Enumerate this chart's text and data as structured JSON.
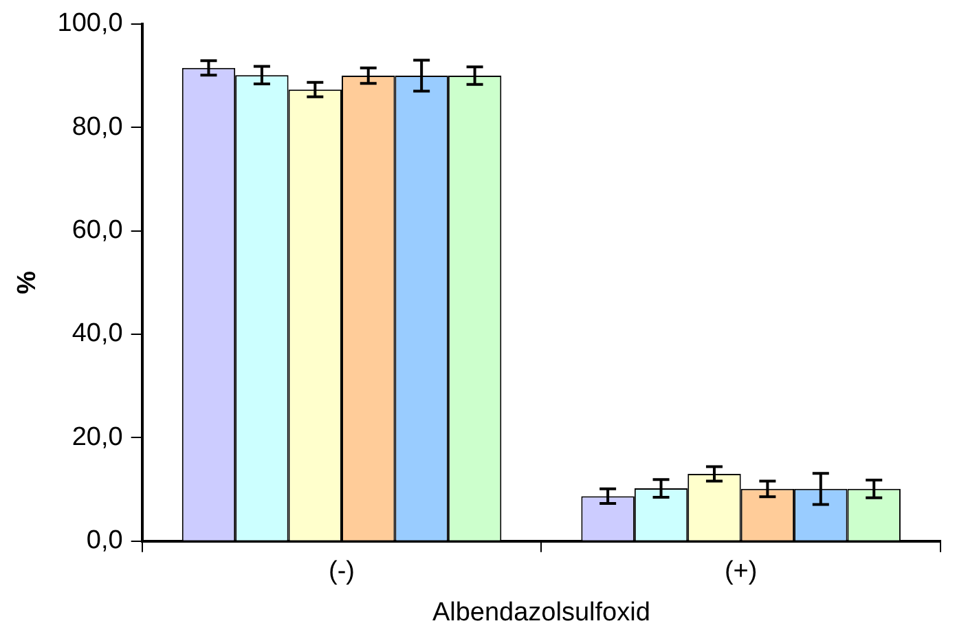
{
  "chart_data": {
    "type": "bar",
    "xlabel": "Albendazolsulfoxid",
    "ylabel": "%",
    "categories": [
      "(-)",
      "(+)"
    ],
    "series": [
      {
        "color": "#ccccff",
        "values": [
          91.5,
          8.7
        ],
        "errors": [
          1.4,
          1.4
        ]
      },
      {
        "color": "#ccffff",
        "values": [
          90.1,
          10.2
        ],
        "errors": [
          1.7,
          1.7
        ]
      },
      {
        "color": "#ffffcc",
        "values": [
          87.3,
          13.0
        ],
        "errors": [
          1.4,
          1.4
        ]
      },
      {
        "color": "#ffcc99",
        "values": [
          90.0,
          10.1
        ],
        "errors": [
          1.5,
          1.5
        ]
      },
      {
        "color": "#99ccff",
        "values": [
          90.0,
          10.1
        ],
        "errors": [
          3.0,
          3.0
        ]
      },
      {
        "color": "#ccffcc",
        "values": [
          90.0,
          10.1
        ],
        "errors": [
          1.7,
          1.7
        ]
      }
    ],
    "ylim": [
      0,
      100
    ],
    "yticks": [
      {
        "value": 0,
        "label": "0,0"
      },
      {
        "value": 20,
        "label": "20,0"
      },
      {
        "value": 40,
        "label": "40,0"
      },
      {
        "value": 60,
        "label": "60,0"
      },
      {
        "value": 80,
        "label": "80,0"
      },
      {
        "value": 100,
        "label": "100,0"
      }
    ],
    "grid": false,
    "legend": false
  }
}
